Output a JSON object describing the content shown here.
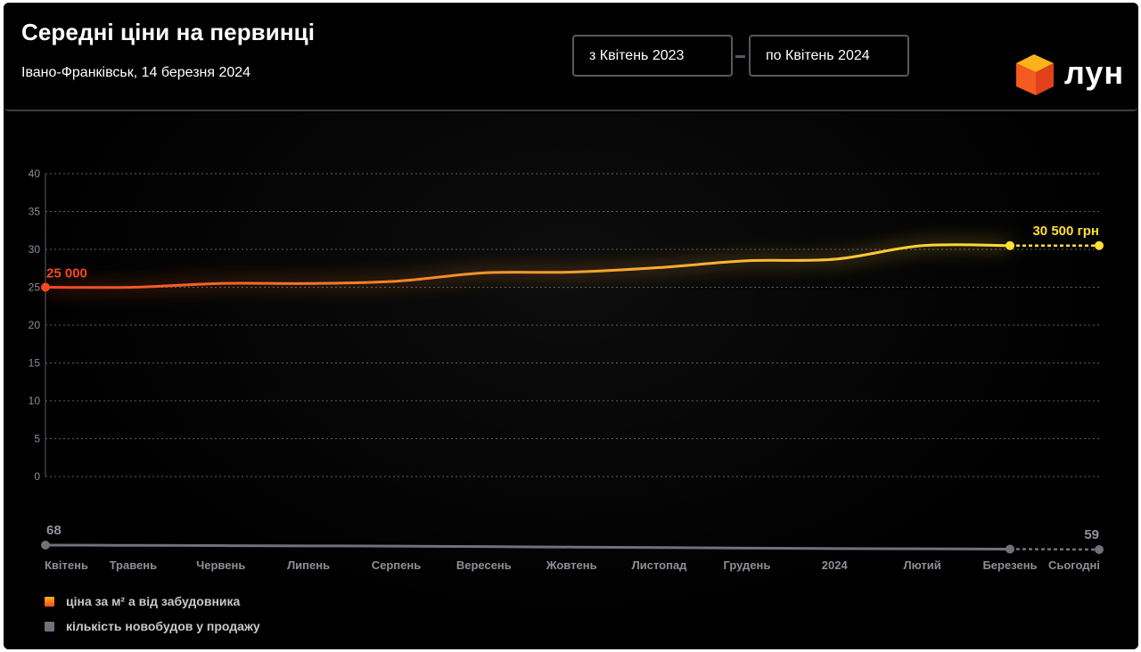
{
  "header": {
    "title": "Середні ціни на первинці",
    "subtitle": "Івано-Франківськ, 14 березня 2024",
    "date_from": "з Квітень 2023",
    "date_to": "по Квітень 2024",
    "logo_text": "лун"
  },
  "legend": {
    "price": "ціна за м² а від забудовника",
    "count": "кількість новобудов у продажу"
  },
  "colors": {
    "price_start": "#f04a23",
    "price_end": "#ffde3a",
    "count_line": "#6e727a",
    "grid": "#5b5e66",
    "tick_text": "#8c8f96"
  },
  "chart_data": {
    "type": "line",
    "x": [
      "Квітень",
      "Травень",
      "Червень",
      "Липень",
      "Серпень",
      "Вересень",
      "Жовтень",
      "Листопад",
      "Грудень",
      "2024",
      "Лютий",
      "Березень",
      "Сьогодні"
    ],
    "ylim": [
      0,
      40
    ],
    "yticks": [
      "0",
      "5",
      "10",
      "15",
      "20",
      "25",
      "30",
      "35",
      "40"
    ],
    "grid": true,
    "legend_position": "bottom-left",
    "series": [
      {
        "name": "ціна за м² а від забудовника",
        "values": [
          25.0,
          25.0,
          25.5,
          25.5,
          25.8,
          26.9,
          27.0,
          27.6,
          28.5,
          28.7,
          30.5,
          30.5,
          30.5
        ],
        "start_label": "25 000",
        "end_label": "30 500 грн"
      },
      {
        "name": "кількість новобудов у продажу",
        "values": [
          68,
          67.5,
          67,
          66.5,
          66,
          65,
          64,
          63,
          62,
          61,
          60.5,
          60,
          59
        ],
        "start_label": "68",
        "end_label": "59"
      }
    ]
  }
}
